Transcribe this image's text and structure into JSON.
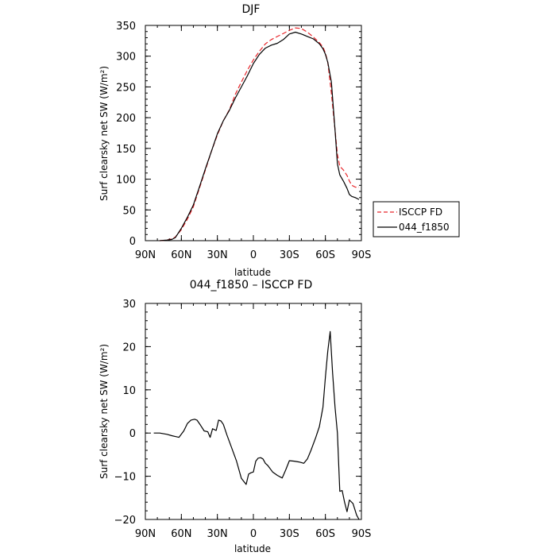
{
  "chart_data": [
    {
      "type": "line",
      "title": "DJF",
      "xlabel": "latitude",
      "ylabel": "Surf clearsky net SW (W/m²)",
      "xlim": [
        -90,
        90
      ],
      "ylim": [
        0,
        350
      ],
      "x_ticks": [
        -90,
        -60,
        -30,
        0,
        30,
        60,
        90
      ],
      "x_tick_labels": [
        "90N",
        "60N",
        "30N",
        "0",
        "30S",
        "60S",
        "90S"
      ],
      "y_ticks": [
        0,
        50,
        100,
        150,
        200,
        250,
        300,
        350
      ],
      "y_tick_labels": [
        "0",
        "50",
        "100",
        "150",
        "200",
        "250",
        "300",
        "350"
      ],
      "legend_position": "right",
      "series": [
        {
          "name": "ISCCP FD",
          "style": "dashed",
          "color": "#e8262b",
          "x": [
            -78,
            -72,
            -68,
            -65,
            -60,
            -55,
            -50,
            -45,
            -40,
            -35,
            -30,
            -25,
            -20,
            -15,
            -10,
            -5,
            0,
            5,
            10,
            15,
            20,
            25,
            30,
            35,
            40,
            45,
            50,
            55,
            58,
            60,
            62,
            65,
            68,
            70,
            72,
            75,
            78,
            80,
            82,
            85,
            88
          ],
          "values": [
            0,
            1,
            3,
            6,
            18,
            35,
            55,
            85,
            115,
            145,
            172,
            195,
            213,
            238,
            258,
            277,
            294,
            308,
            320,
            327,
            332,
            337,
            342,
            346,
            345,
            339,
            331,
            322,
            315,
            305,
            290,
            240,
            180,
            140,
            121,
            115,
            106,
            97,
            90,
            87,
            87
          ]
        },
        {
          "name": "044_f1850",
          "style": "solid",
          "color": "#000000",
          "x": [
            -78,
            -72,
            -68,
            -65,
            -60,
            -55,
            -50,
            -45,
            -40,
            -35,
            -30,
            -25,
            -20,
            -15,
            -10,
            -5,
            0,
            5,
            10,
            15,
            20,
            25,
            30,
            35,
            40,
            45,
            50,
            55,
            58,
            60,
            62,
            65,
            68,
            70,
            72,
            75,
            78,
            80,
            82,
            85,
            88
          ],
          "values": [
            0,
            1,
            2,
            5,
            20,
            38,
            58,
            87,
            117,
            145,
            174,
            195,
            212,
            232,
            250,
            268,
            288,
            303,
            313,
            318,
            321,
            327,
            336,
            339,
            336,
            332,
            328,
            320,
            312,
            303,
            290,
            258,
            180,
            125,
            107,
            97,
            85,
            75,
            72,
            70,
            67
          ]
        }
      ]
    },
    {
      "type": "line",
      "title": "044_f1850 – ISCCP FD",
      "xlabel": "latitude",
      "ylabel": "Surf clearsky net SW (W/m²)",
      "xlim": [
        -90,
        90
      ],
      "ylim": [
        -20,
        30
      ],
      "x_ticks": [
        -90,
        -60,
        -30,
        0,
        30,
        60,
        90
      ],
      "x_tick_labels": [
        "90N",
        "60N",
        "30N",
        "0",
        "30S",
        "60S",
        "90S"
      ],
      "y_ticks": [
        -20,
        -10,
        0,
        10,
        20,
        30
      ],
      "y_tick_labels": [
        "−20",
        "−10",
        "0",
        "10",
        "20",
        "30"
      ],
      "series": [
        {
          "name": "044_f1850 – ISCCP FD",
          "style": "solid",
          "color": "#000000",
          "x": [
            -83,
            -78,
            -72,
            -68,
            -65,
            -62,
            -58,
            -55,
            -52,
            -49,
            -47,
            -44,
            -41,
            -38,
            -36,
            -34,
            -31,
            -29,
            -27,
            -25,
            -22,
            -18,
            -14,
            -10,
            -6,
            -4,
            -2,
            0,
            2,
            4,
            6,
            8,
            10,
            12,
            16,
            20,
            24,
            27,
            30,
            34,
            38,
            42,
            45,
            48,
            52,
            55,
            58,
            60,
            62,
            64,
            66,
            68,
            70,
            72,
            74,
            76,
            78,
            80,
            83,
            86,
            88
          ],
          "values": [
            0,
            0,
            -0.3,
            -0.6,
            -0.8,
            -1,
            0.5,
            2.2,
            3,
            3.2,
            3,
            1.8,
            0.5,
            0.3,
            -1,
            1,
            0.6,
            3,
            2.8,
            2,
            -0.5,
            -3.5,
            -6.5,
            -10.5,
            -11.9,
            -9.5,
            -9.2,
            -9,
            -6.5,
            -5.8,
            -5.7,
            -6,
            -7,
            -7.5,
            -9,
            -9.8,
            -10.4,
            -8.5,
            -6.4,
            -6.5,
            -6.7,
            -7,
            -6,
            -4,
            -1,
            1.5,
            6,
            13,
            19,
            23.5,
            14,
            6,
            0,
            -13.5,
            -13.3,
            -16,
            -18.2,
            -15.5,
            -16.3,
            -19,
            -20
          ]
        }
      ]
    }
  ]
}
